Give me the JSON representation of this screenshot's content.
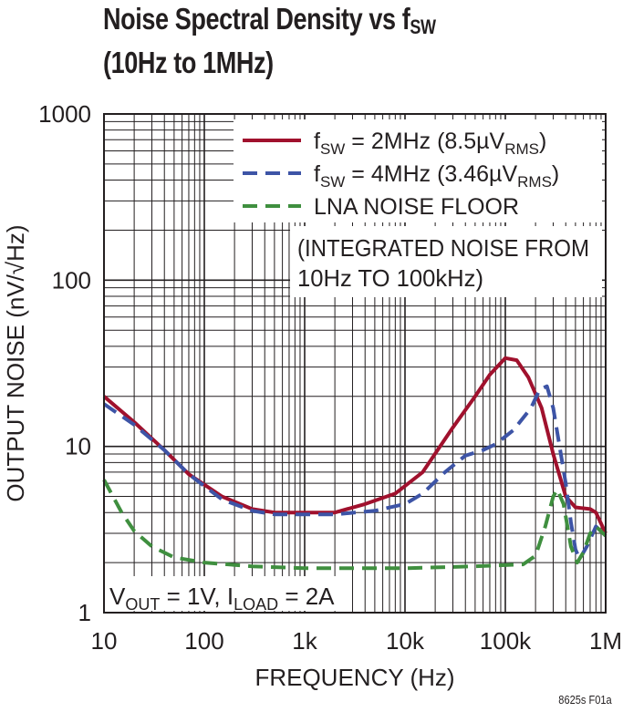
{
  "title": {
    "line1_main": "Noise Spectral Density vs f",
    "line1_sub": "SW",
    "line2": "(10Hz to 1MHz)"
  },
  "figure_code": "8625s F01a",
  "colors": {
    "series_2mhz": "#a0112d",
    "series_4mhz": "#3d54a6",
    "series_lna": "#3f8f3f",
    "grid": "#231f20"
  },
  "annotations": {
    "integrated_noise_line1": "(INTEGRATED NOISE FROM",
    "integrated_noise_line2": "10Hz TO 100kHz)",
    "vout_text": "V",
    "vout_sub": "OUT",
    "vout_rest": " = 1V, I",
    "iload_sub": "LOAD",
    "iload_rest": " = 2A"
  },
  "chart_data": {
    "type": "line",
    "x_scale": "log",
    "y_scale": "log",
    "xlim": [
      10,
      1000000
    ],
    "ylim": [
      1,
      1000
    ],
    "grid": true,
    "legend_placement": "top-right",
    "xlabel": "FREQUENCY (Hz)",
    "ylabel": "OUTPUT NOISE (nV/√Hz)",
    "x_ticks": [
      "10",
      "100",
      "1k",
      "10k",
      "100k",
      "1M"
    ],
    "y_ticks": [
      "1",
      "10",
      "100",
      "1000"
    ],
    "series": [
      {
        "name": "fSW = 2MHz (8.5µVRMS)",
        "legend": {
          "pre": "f",
          "sub": "SW",
          "mid": " = 2MHz (8.5µV",
          "sub2": "RMS",
          "post": ")"
        },
        "color_key": "series_2mhz",
        "style": "solid",
        "points": [
          [
            10,
            20
          ],
          [
            20,
            14
          ],
          [
            40,
            9.5
          ],
          [
            70,
            6.8
          ],
          [
            150,
            5
          ],
          [
            300,
            4.2
          ],
          [
            500,
            4
          ],
          [
            1000,
            4
          ],
          [
            2000,
            4
          ],
          [
            4000,
            4.5
          ],
          [
            8000,
            5.2
          ],
          [
            15000,
            7
          ],
          [
            30000,
            13
          ],
          [
            50000,
            20
          ],
          [
            70000,
            27
          ],
          [
            100000,
            34
          ],
          [
            130000,
            33
          ],
          [
            170000,
            26
          ],
          [
            230000,
            17
          ],
          [
            300000,
            9
          ],
          [
            400000,
            5
          ],
          [
            500000,
            4.3
          ],
          [
            700000,
            4.2
          ],
          [
            800000,
            4
          ],
          [
            1000000,
            3
          ]
        ]
      },
      {
        "name": "fSW = 4MHz (3.46µVRMS)",
        "legend": {
          "pre": "f",
          "sub": "SW",
          "mid": " = 4MHz  (3.46µV",
          "sub2": "RMS",
          "post": ")"
        },
        "color_key": "series_4mhz",
        "style": "dashed",
        "points": [
          [
            10,
            18
          ],
          [
            20,
            13.5
          ],
          [
            40,
            9.5
          ],
          [
            70,
            6.8
          ],
          [
            150,
            4.8
          ],
          [
            300,
            4.1
          ],
          [
            500,
            3.9
          ],
          [
            1000,
            3.9
          ],
          [
            2000,
            3.9
          ],
          [
            5000,
            4.1
          ],
          [
            10000,
            4.5
          ],
          [
            15000,
            5.2
          ],
          [
            25000,
            7
          ],
          [
            40000,
            8.8
          ],
          [
            60000,
            9.5
          ],
          [
            80000,
            10.3
          ],
          [
            120000,
            12.5
          ],
          [
            180000,
            17
          ],
          [
            220000,
            22
          ],
          [
            260000,
            23
          ],
          [
            300000,
            17
          ],
          [
            400000,
            6
          ],
          [
            450000,
            3.5
          ],
          [
            500000,
            2.4
          ],
          [
            550000,
            2.1
          ],
          [
            650000,
            2.5
          ],
          [
            800000,
            3.3
          ],
          [
            1000000,
            2.9
          ]
        ]
      },
      {
        "name": "LNA NOISE FLOOR",
        "legend": {
          "pre": "LNA NOISE FLOOR",
          "sub": "",
          "mid": "",
          "sub2": "",
          "post": ""
        },
        "color_key": "series_lna",
        "style": "dashed",
        "points": [
          [
            10,
            6.3
          ],
          [
            15,
            4
          ],
          [
            20,
            3.1
          ],
          [
            30,
            2.5
          ],
          [
            50,
            2.15
          ],
          [
            100,
            2
          ],
          [
            300,
            1.9
          ],
          [
            1000,
            1.85
          ],
          [
            10000,
            1.85
          ],
          [
            50000,
            1.9
          ],
          [
            150000,
            1.95
          ],
          [
            200000,
            2.2
          ],
          [
            250000,
            3.3
          ],
          [
            300000,
            5
          ],
          [
            330000,
            5.5
          ],
          [
            380000,
            4.5
          ],
          [
            450000,
            2.5
          ],
          [
            520000,
            2
          ],
          [
            600000,
            2.3
          ],
          [
            700000,
            3
          ],
          [
            800000,
            3.3
          ],
          [
            1000000,
            2.9
          ]
        ]
      }
    ]
  }
}
